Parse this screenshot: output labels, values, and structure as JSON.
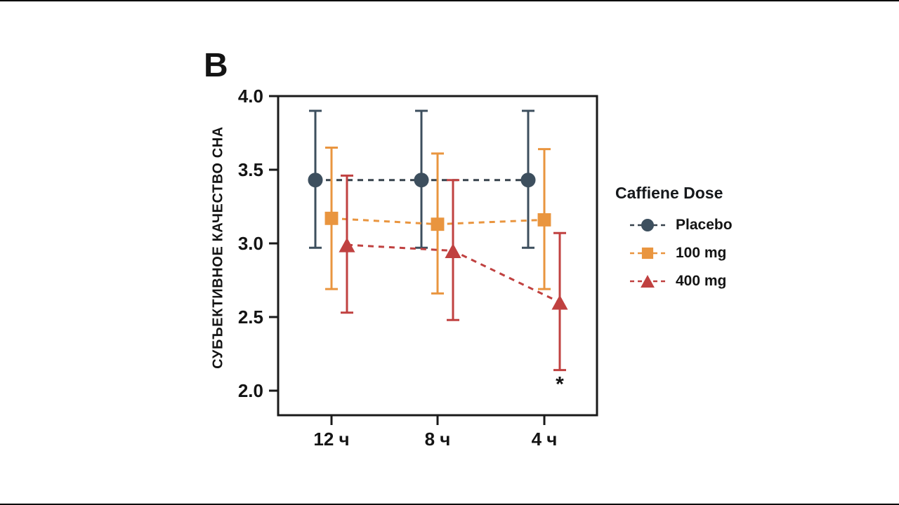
{
  "page": {
    "panel_label": "B",
    "background": "#ffffff",
    "axis_color": "#1a1a1a",
    "text_color": "#141414"
  },
  "chart_data": {
    "type": "line",
    "title": "",
    "xlabel": "",
    "ylabel": "СУБЪЕКТИВНОЕ КАЧЕСТВО СНА",
    "categories": [
      "12 ч",
      "8 ч",
      "4 ч"
    ],
    "yticks": [
      4.0,
      3.5,
      3.0,
      2.5,
      2.0
    ],
    "ylim": [
      1.83,
      4.0
    ],
    "grid": false,
    "legend": {
      "title": "Caffiene Dose",
      "position": "right"
    },
    "series": [
      {
        "name": "Placebo",
        "marker": "circle",
        "color": "#3d4f5e",
        "line_color": "#37424c",
        "values": [
          3.43,
          3.43,
          3.43
        ],
        "err_low": [
          2.97,
          2.97,
          2.97
        ],
        "err_high": [
          3.9,
          3.9,
          3.9
        ]
      },
      {
        "name": "100 mg",
        "marker": "square",
        "color": "#e9953f",
        "line_color": "#e9953f",
        "values": [
          3.17,
          3.13,
          3.16
        ],
        "err_low": [
          2.69,
          2.66,
          2.69
        ],
        "err_high": [
          3.65,
          3.61,
          3.64
        ]
      },
      {
        "name": "400 mg",
        "marker": "triangle",
        "color": "#c04140",
        "line_color": "#c04140",
        "values": [
          2.99,
          2.95,
          2.6
        ],
        "err_low": [
          2.53,
          2.48,
          2.14
        ],
        "err_high": [
          3.46,
          3.43,
          3.07
        ]
      }
    ],
    "annotations": [
      {
        "text": "*",
        "category_index": 2,
        "series_index": 2,
        "placement": "below_lower_errorbar"
      }
    ]
  }
}
